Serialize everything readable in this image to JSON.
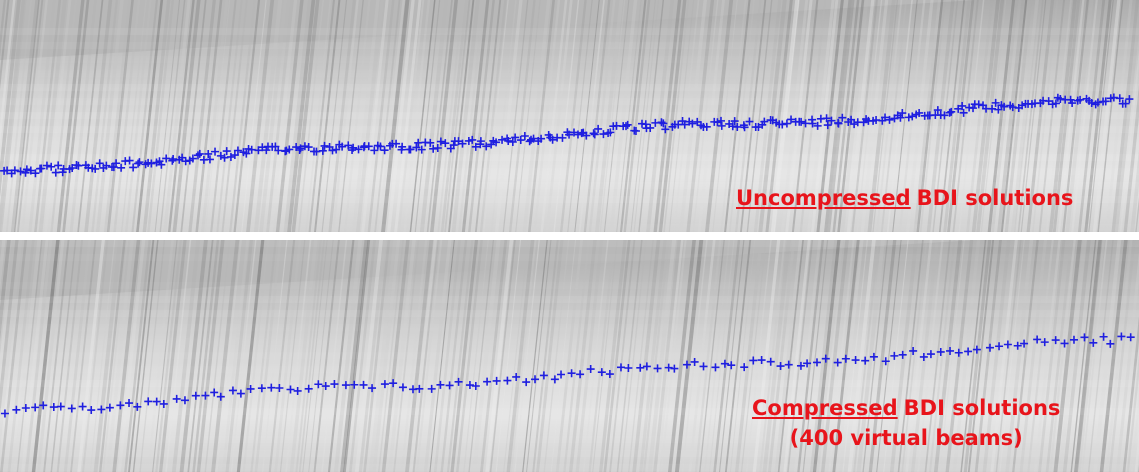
{
  "panels": [
    {
      "label": {
        "emphasis": "Uncompressed",
        "rest": "BDI solutions"
      }
    },
    {
      "label": {
        "emphasis": "Compressed",
        "rest": "BDI solutions",
        "note": "(400 virtual beams)"
      }
    }
  ]
}
